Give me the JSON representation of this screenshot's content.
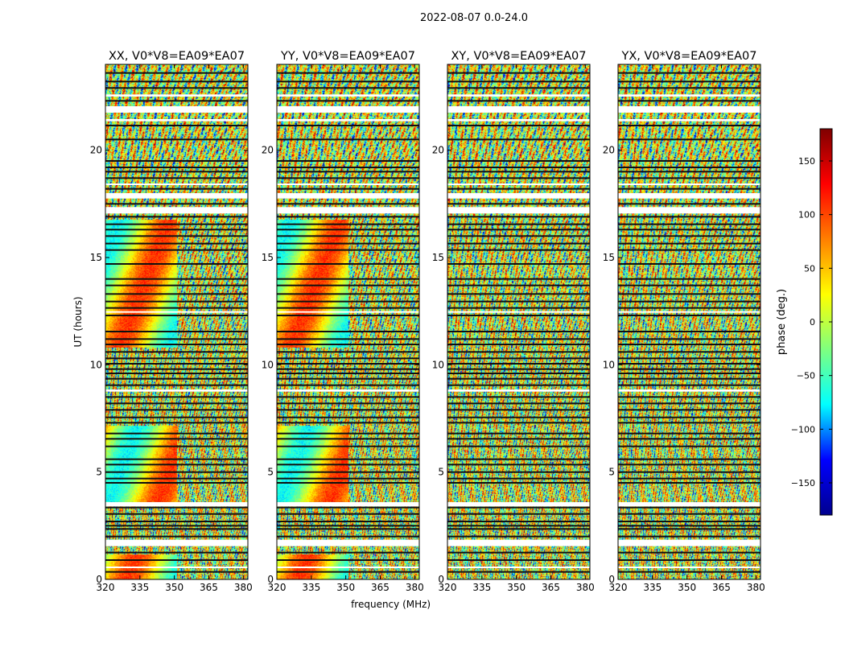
{
  "figure_title": "2022-08-07 0.0-24.0",
  "colors": {
    "colormap": [
      "#00008f",
      "#0000ff",
      "#00ffff",
      "#7fff7f",
      "#ffff00",
      "#ff7f00",
      "#ff0000",
      "#7f0000"
    ],
    "flagged": "#ffffff",
    "frame": "#000000"
  },
  "chart_data": [
    {
      "type": "heatmap",
      "title": "XX, V0*V8=EA09*EA07",
      "xlabel": "",
      "ylabel": "UT (hours)",
      "xlim": [
        320,
        382
      ],
      "ylim": [
        0,
        24
      ],
      "xticks": [
        320,
        335,
        350,
        365,
        380
      ],
      "yticks": [
        0,
        5,
        10,
        15,
        20
      ],
      "z_quantity": "visibility phase (deg.)"
    },
    {
      "type": "heatmap",
      "title": "YY, V0*V8=EA09*EA07",
      "xlabel": "frequency (MHz)",
      "ylabel": "",
      "xlim": [
        320,
        382
      ],
      "ylim": [
        0,
        24
      ],
      "xticks": [
        320,
        335,
        350,
        365,
        380
      ],
      "yticks": [
        0,
        5,
        10,
        15,
        20
      ],
      "z_quantity": "visibility phase (deg.)"
    },
    {
      "type": "heatmap",
      "title": "XY, V0*V8=EA09*EA07",
      "xlabel": "",
      "ylabel": "",
      "xlim": [
        320,
        382
      ],
      "ylim": [
        0,
        24
      ],
      "xticks": [
        320,
        335,
        350,
        365,
        380
      ],
      "yticks": [
        0,
        5,
        10,
        15,
        20
      ],
      "z_quantity": "visibility phase (deg.)"
    },
    {
      "type": "heatmap",
      "title": "YX, V0*V8=EA09*EA07",
      "xlabel": "",
      "ylabel": "",
      "xlim": [
        320,
        382
      ],
      "ylim": [
        0,
        24
      ],
      "xticks": [
        320,
        335,
        350,
        365,
        380
      ],
      "yticks": [
        0,
        5,
        10,
        15,
        20
      ],
      "z_quantity": "visibility phase (deg.)"
    }
  ],
  "colorbar": {
    "label": "phase (deg.)",
    "range": [
      -180,
      180
    ],
    "ticks": [
      -150,
      -100,
      -50,
      0,
      50,
      100,
      150
    ],
    "tick_labels": [
      "−150",
      "−100",
      "−50",
      "0",
      "50",
      "100",
      "150"
    ]
  },
  "flagged_bands_hours": [
    [
      0.55,
      0.6
    ],
    [
      1.55,
      1.85
    ],
    [
      3.4,
      3.6
    ],
    [
      8.75,
      8.85
    ],
    [
      12.45,
      12.5
    ],
    [
      17.05,
      17.35
    ],
    [
      17.75,
      18.0
    ],
    [
      18.4,
      18.45
    ],
    [
      21.35,
      21.45
    ],
    [
      21.75,
      22.05
    ],
    [
      22.5,
      22.6
    ]
  ],
  "gap_lines_hours": [
    0.35,
    0.9,
    1.25,
    2.0,
    2.35,
    2.5,
    2.7,
    3.05,
    3.35,
    4.5,
    4.7,
    5.0,
    5.35,
    5.6,
    6.2,
    6.55,
    6.8,
    7.3,
    7.55,
    7.9,
    8.2,
    8.5,
    9.05,
    9.35,
    9.6,
    9.8,
    10.05,
    10.3,
    10.6,
    10.95,
    11.2,
    11.55,
    12.3,
    12.65,
    12.95,
    13.3,
    13.7,
    14.0,
    14.7,
    15.35,
    15.65,
    16.0,
    16.3,
    16.55,
    16.9,
    17.5,
    18.2,
    18.7,
    19.0,
    19.2,
    19.5,
    20.5,
    21.15,
    22.3,
    22.9,
    23.2,
    23.6
  ]
}
